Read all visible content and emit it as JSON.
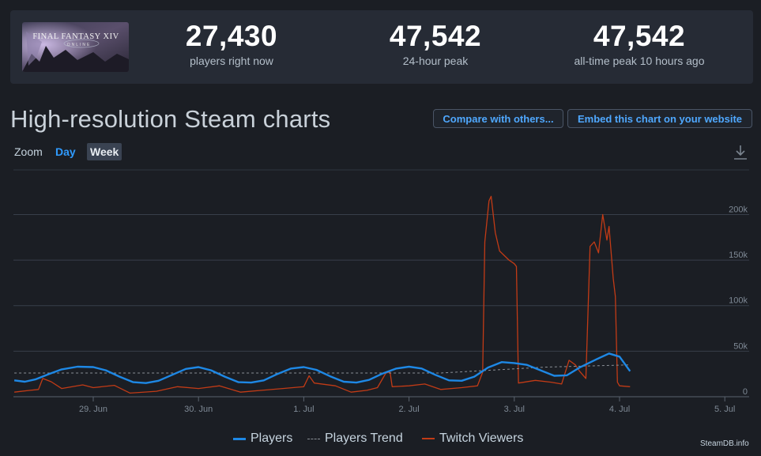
{
  "header": {
    "logo_text": "FINAL FANTASY XIV",
    "logo_subtext": "ONLINE",
    "stats": [
      {
        "value": "27,430",
        "label": "players right now"
      },
      {
        "value": "47,542",
        "label": "24-hour peak"
      },
      {
        "value": "47,542",
        "label": "all-time peak 10 hours ago"
      }
    ]
  },
  "page_title": "High-resolution Steam charts",
  "buttons": {
    "compare": "Compare with others...",
    "embed": "Embed this chart on your website"
  },
  "zoom": {
    "label": "Zoom",
    "day": "Day",
    "week": "Week",
    "selected": "Week"
  },
  "icons": {
    "download": "download-icon"
  },
  "colors": {
    "players": "#1e88e5",
    "trend": "#8a8f96",
    "twitch": "#c23b16",
    "accent": "#2f9bff"
  },
  "legend": [
    {
      "name": "Players",
      "style": "solid",
      "color": "#1e88e5"
    },
    {
      "name": "Players Trend",
      "style": "dashed",
      "color": "#8a8f96"
    },
    {
      "name": "Twitch Viewers",
      "style": "solid",
      "color": "#c23b16"
    }
  ],
  "credit": "SteamDB.info",
  "chart_data": {
    "type": "line",
    "x_ticks": [
      "29. Jun",
      "30. Jun",
      "1. Jul",
      "2. Jul",
      "3. Jul",
      "4. Jul",
      "5. Jul"
    ],
    "y_ticks": [
      "0",
      "50k",
      "100k",
      "150k",
      "200k"
    ],
    "ylim": [
      0,
      250000
    ],
    "xlim": [
      -0.75,
      5.1
    ],
    "grid": true,
    "legend_position": "bottom",
    "series": [
      {
        "name": "Players",
        "points": [
          [
            -0.75,
            18000
          ],
          [
            -0.65,
            16500
          ],
          [
            -0.55,
            19000
          ],
          [
            -0.42,
            25000
          ],
          [
            -0.3,
            30000
          ],
          [
            -0.15,
            33000
          ],
          [
            0.0,
            32500
          ],
          [
            0.12,
            29000
          ],
          [
            0.25,
            22000
          ],
          [
            0.38,
            16000
          ],
          [
            0.5,
            15000
          ],
          [
            0.62,
            17500
          ],
          [
            0.75,
            24000
          ],
          [
            0.88,
            30500
          ],
          [
            1.0,
            32500
          ],
          [
            1.12,
            29000
          ],
          [
            1.25,
            22000
          ],
          [
            1.38,
            16000
          ],
          [
            1.5,
            15500
          ],
          [
            1.62,
            18000
          ],
          [
            1.75,
            25000
          ],
          [
            1.88,
            31000
          ],
          [
            2.0,
            32500
          ],
          [
            2.12,
            29500
          ],
          [
            2.25,
            22500
          ],
          [
            2.38,
            16500
          ],
          [
            2.5,
            15500
          ],
          [
            2.62,
            18500
          ],
          [
            2.75,
            25500
          ],
          [
            2.88,
            31000
          ],
          [
            3.0,
            33000
          ],
          [
            3.12,
            31000
          ],
          [
            3.25,
            24000
          ],
          [
            3.38,
            18000
          ],
          [
            3.5,
            17500
          ],
          [
            3.62,
            22000
          ],
          [
            3.75,
            32000
          ],
          [
            3.88,
            38000
          ],
          [
            4.0,
            37000
          ],
          [
            4.12,
            35000
          ],
          [
            4.25,
            29000
          ],
          [
            4.38,
            23000
          ],
          [
            4.5,
            23500
          ],
          [
            4.62,
            32000
          ],
          [
            4.78,
            41000
          ],
          [
            4.9,
            47500
          ],
          [
            5.0,
            44000
          ],
          [
            5.1,
            28000
          ]
        ]
      },
      {
        "name": "Players Trend",
        "points": [
          [
            -0.75,
            26000
          ],
          [
            3.3,
            26000
          ],
          [
            3.75,
            29000
          ],
          [
            4.3,
            32500
          ],
          [
            5.1,
            35000
          ]
        ]
      },
      {
        "name": "Twitch Viewers",
        "points": [
          [
            -0.75,
            5000
          ],
          [
            -0.6,
            7000
          ],
          [
            -0.52,
            8000
          ],
          [
            -0.48,
            20000
          ],
          [
            -0.4,
            16500
          ],
          [
            -0.3,
            9000
          ],
          [
            -0.1,
            13000
          ],
          [
            0.0,
            10000
          ],
          [
            0.2,
            12500
          ],
          [
            0.35,
            4000
          ],
          [
            0.6,
            6000
          ],
          [
            0.8,
            11000
          ],
          [
            1.0,
            9000
          ],
          [
            1.2,
            12000
          ],
          [
            1.4,
            5000
          ],
          [
            1.6,
            7000
          ],
          [
            1.8,
            9000
          ],
          [
            2.0,
            11000
          ],
          [
            2.05,
            23000
          ],
          [
            2.1,
            15000
          ],
          [
            2.3,
            12000
          ],
          [
            2.45,
            5000
          ],
          [
            2.6,
            7000
          ],
          [
            2.7,
            10000
          ],
          [
            2.78,
            26000
          ],
          [
            2.82,
            27000
          ],
          [
            2.84,
            11000
          ],
          [
            3.0,
            12000
          ],
          [
            3.15,
            14000
          ],
          [
            3.3,
            8000
          ],
          [
            3.5,
            10000
          ],
          [
            3.65,
            12000
          ],
          [
            3.7,
            27000
          ],
          [
            3.72,
            170000
          ],
          [
            3.76,
            215000
          ],
          [
            3.78,
            220000
          ],
          [
            3.82,
            180000
          ],
          [
            3.86,
            160000
          ],
          [
            3.95,
            150000
          ],
          [
            4.0,
            146000
          ],
          [
            4.02,
            143000
          ],
          [
            4.04,
            15000
          ],
          [
            4.2,
            18000
          ],
          [
            4.35,
            16000
          ],
          [
            4.45,
            14000
          ],
          [
            4.52,
            40000
          ],
          [
            4.58,
            35000
          ],
          [
            4.62,
            28000
          ],
          [
            4.68,
            20000
          ],
          [
            4.72,
            165000
          ],
          [
            4.76,
            170000
          ],
          [
            4.8,
            158000
          ],
          [
            4.84,
            200000
          ],
          [
            4.88,
            172000
          ],
          [
            4.9,
            187000
          ],
          [
            4.94,
            130000
          ],
          [
            4.96,
            110000
          ],
          [
            4.98,
            16000
          ],
          [
            5.0,
            12000
          ],
          [
            5.1,
            11000
          ]
        ]
      }
    ]
  }
}
